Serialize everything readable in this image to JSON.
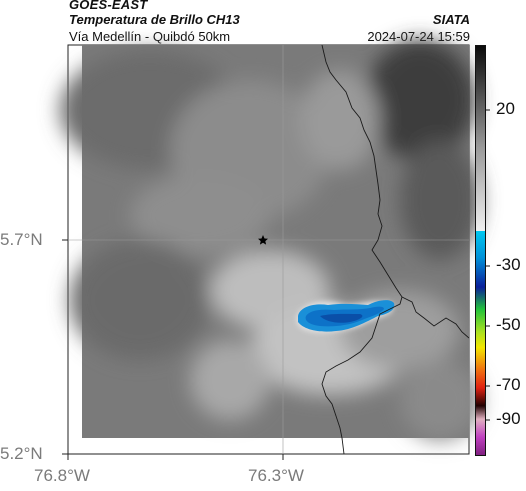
{
  "header": {
    "source": "GOES-EAST",
    "product": "Temperatura de Brillo CH13",
    "route": "Vía Medellín - Quibdó 50km",
    "org": "SIATA",
    "datetime": "2024-07-24 15:59"
  },
  "axes": {
    "lat_ticks": [
      "5.7°N",
      "5.2°N"
    ],
    "lon_ticks": [
      "76.8°W",
      "76.3°W"
    ]
  },
  "colorbar": {
    "ticks": [
      "20",
      "-30",
      "-50",
      "-70",
      "-90"
    ],
    "colors": {
      "gray_top": "#0a0a0a",
      "gray_bottom": "#eeeeee",
      "cyan": "#00b3e6",
      "blue": "#0a1f9a",
      "green": "#22c23a",
      "yellow": "#f2e600",
      "red": "#e02010",
      "magenta": "#c040c0"
    }
  },
  "map": {
    "marker": "star-icon",
    "cloud_core_color": "#1a90d8"
  }
}
